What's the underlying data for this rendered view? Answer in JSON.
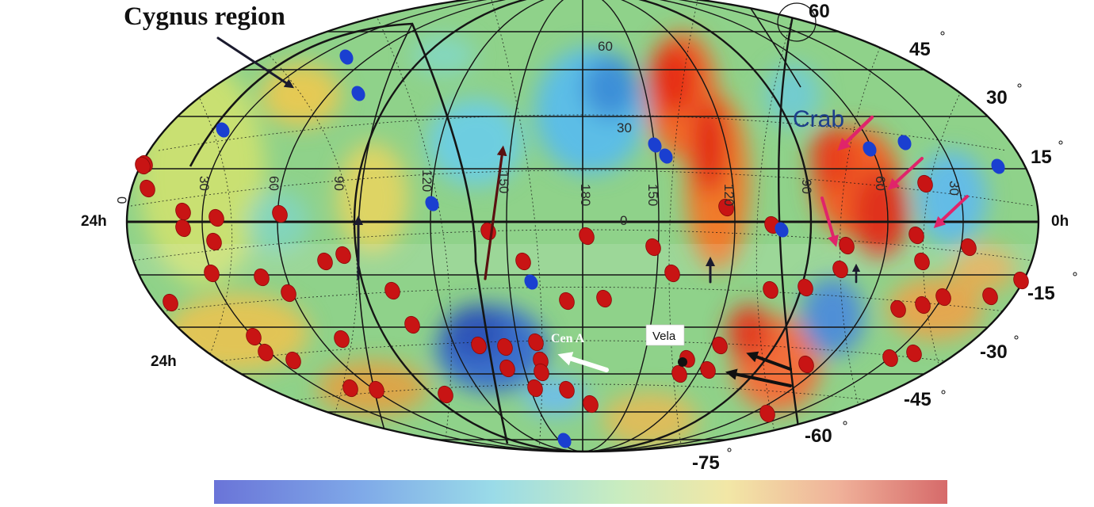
{
  "annotations": {
    "cygnus": "Cygnus region",
    "crab": "Crab",
    "cen_a": "Cen A",
    "vela": "Vela"
  },
  "hour_labels": {
    "left": "24h",
    "right": "0h",
    "lower_left": "24h"
  },
  "declination_labels": [
    {
      "id": "dec-60",
      "text": "60"
    },
    {
      "id": "dec-45",
      "text": "45"
    },
    {
      "id": "dec-30",
      "text": "30"
    },
    {
      "id": "dec-15",
      "text": "15"
    },
    {
      "id": "dec-m15",
      "text": "-15"
    },
    {
      "id": "dec-m30",
      "text": "-30"
    },
    {
      "id": "dec-m45",
      "text": "-45"
    },
    {
      "id": "dec-m60",
      "text": "-60"
    },
    {
      "id": "dec-m75",
      "text": "-75"
    }
  ],
  "inner_grid_labels": [
    {
      "id": "g60",
      "text": "60"
    },
    {
      "id": "g30",
      "text": "30"
    },
    {
      "id": "g0",
      "text": "0"
    },
    {
      "id": "lon0",
      "text": "0"
    },
    {
      "id": "lon30a",
      "text": "30"
    },
    {
      "id": "lon60a",
      "text": "60"
    },
    {
      "id": "lon90a",
      "text": "90"
    },
    {
      "id": "lon120",
      "text": "120"
    },
    {
      "id": "lon150a",
      "text": "150"
    },
    {
      "id": "lon180",
      "text": "180"
    },
    {
      "id": "lon150b",
      "text": "150"
    },
    {
      "id": "lon120b",
      "text": "120"
    },
    {
      "id": "lon90b",
      "text": "90"
    },
    {
      "id": "lon60b",
      "text": "60"
    },
    {
      "id": "lon30b",
      "text": "30"
    }
  ],
  "colors": {
    "background_field": "#8fd28a",
    "warm": "#ee3a18",
    "cold": "#2f62c8",
    "red_marker": "#c81414",
    "blue_marker": "#1a3fd0",
    "crab_arrow": "#e0246a",
    "crab_text": "#1d3f8c"
  }
}
